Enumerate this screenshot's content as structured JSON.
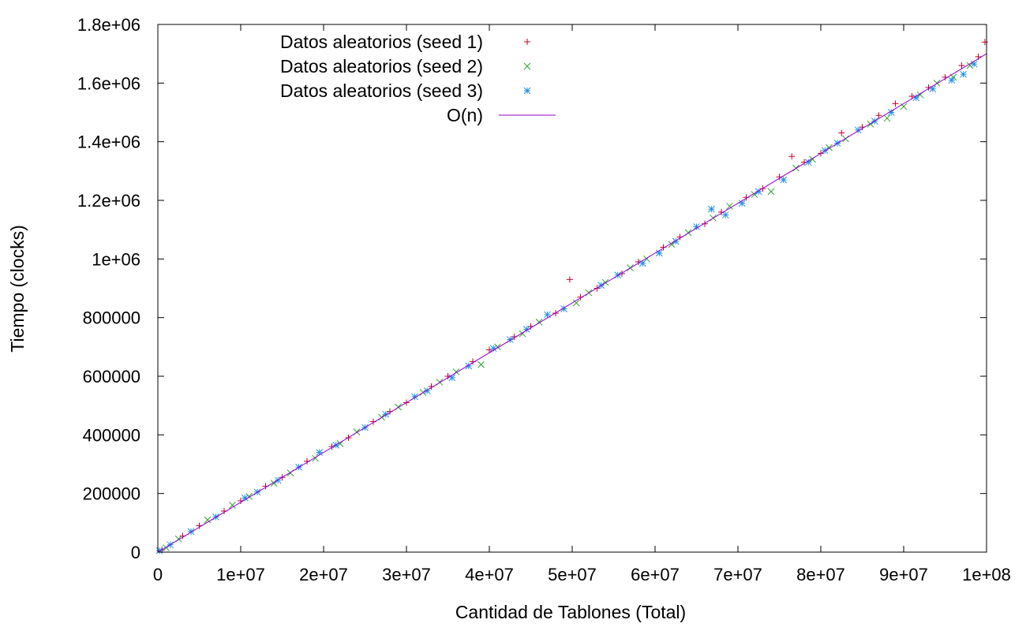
{
  "chart_data": {
    "type": "scatter",
    "title": "",
    "xlabel": "Cantidad de Tablones (Total)",
    "ylabel": "Tiempo (clocks)",
    "xlim": [
      0,
      100000000
    ],
    "ylim": [
      0,
      1800000
    ],
    "x_ticks": [
      {
        "value": 0,
        "label": "0"
      },
      {
        "value": 10000000,
        "label": "1e+07"
      },
      {
        "value": 20000000,
        "label": "2e+07"
      },
      {
        "value": 30000000,
        "label": "3e+07"
      },
      {
        "value": 40000000,
        "label": "4e+07"
      },
      {
        "value": 50000000,
        "label": "5e+07"
      },
      {
        "value": 60000000,
        "label": "6e+07"
      },
      {
        "value": 70000000,
        "label": "7e+07"
      },
      {
        "value": 80000000,
        "label": "8e+07"
      },
      {
        "value": 90000000,
        "label": "9e+07"
      },
      {
        "value": 100000000,
        "label": "1e+08"
      }
    ],
    "y_ticks": [
      {
        "value": 0,
        "label": "0"
      },
      {
        "value": 200000,
        "label": "200000"
      },
      {
        "value": 400000,
        "label": "400000"
      },
      {
        "value": 600000,
        "label": "600000"
      },
      {
        "value": 800000,
        "label": "800000"
      },
      {
        "value": 1000000,
        "label": "1e+06"
      },
      {
        "value": 1200000,
        "label": "1.2e+06"
      },
      {
        "value": 1400000,
        "label": "1.4e+06"
      },
      {
        "value": 1600000,
        "label": "1.6e+06"
      },
      {
        "value": 1800000,
        "label": "1.8e+06"
      }
    ],
    "grid": false,
    "legend_position": "top-left",
    "series": [
      {
        "name": "Datos aleatorios (seed 1)",
        "marker": "plus",
        "color": "#c8002a",
        "points": [
          [
            500000,
            8000
          ],
          [
            3000000,
            55000
          ],
          [
            5000000,
            90000
          ],
          [
            8000000,
            140000
          ],
          [
            10000000,
            175000
          ],
          [
            13000000,
            225000
          ],
          [
            15000000,
            255000
          ],
          [
            18000000,
            310000
          ],
          [
            21000000,
            360000
          ],
          [
            23000000,
            390000
          ],
          [
            26000000,
            445000
          ],
          [
            28000000,
            480000
          ],
          [
            30000000,
            510000
          ],
          [
            33000000,
            565000
          ],
          [
            35000000,
            600000
          ],
          [
            38000000,
            650000
          ],
          [
            40000000,
            690000
          ],
          [
            43000000,
            735000
          ],
          [
            45000000,
            770000
          ],
          [
            48000000,
            815000
          ],
          [
            49700000,
            930000
          ],
          [
            51000000,
            870000
          ],
          [
            53000000,
            900000
          ],
          [
            56000000,
            950000
          ],
          [
            58000000,
            990000
          ],
          [
            61000000,
            1040000
          ],
          [
            63000000,
            1075000
          ],
          [
            66000000,
            1120000
          ],
          [
            68000000,
            1160000
          ],
          [
            71000000,
            1210000
          ],
          [
            73000000,
            1240000
          ],
          [
            75000000,
            1280000
          ],
          [
            76500000,
            1350000
          ],
          [
            78000000,
            1330000
          ],
          [
            80000000,
            1360000
          ],
          [
            82500000,
            1430000
          ],
          [
            85000000,
            1450000
          ],
          [
            87000000,
            1490000
          ],
          [
            89000000,
            1530000
          ],
          [
            91000000,
            1555000
          ],
          [
            93000000,
            1585000
          ],
          [
            95000000,
            1620000
          ],
          [
            97000000,
            1660000
          ],
          [
            99000000,
            1690000
          ],
          [
            99800000,
            1740000
          ]
        ]
      },
      {
        "name": "Datos aleatorios (seed 2)",
        "marker": "cross",
        "color": "#2ca02c",
        "points": [
          [
            1000000,
            15000
          ],
          [
            2500000,
            45000
          ],
          [
            6000000,
            110000
          ],
          [
            9000000,
            160000
          ],
          [
            11000000,
            190000
          ],
          [
            14000000,
            235000
          ],
          [
            16000000,
            270000
          ],
          [
            19000000,
            320000
          ],
          [
            22000000,
            370000
          ],
          [
            24000000,
            410000
          ],
          [
            27000000,
            460000
          ],
          [
            29000000,
            495000
          ],
          [
            32000000,
            545000
          ],
          [
            34000000,
            580000
          ],
          [
            36000000,
            615000
          ],
          [
            39000000,
            640000
          ],
          [
            41000000,
            700000
          ],
          [
            44000000,
            745000
          ],
          [
            46000000,
            785000
          ],
          [
            50500000,
            850000
          ],
          [
            52000000,
            885000
          ],
          [
            54000000,
            920000
          ],
          [
            57000000,
            970000
          ],
          [
            59000000,
            1000000
          ],
          [
            62000000,
            1050000
          ],
          [
            64000000,
            1090000
          ],
          [
            67000000,
            1140000
          ],
          [
            69000000,
            1180000
          ],
          [
            72000000,
            1220000
          ],
          [
            74000000,
            1230000
          ],
          [
            77000000,
            1310000
          ],
          [
            79000000,
            1340000
          ],
          [
            81000000,
            1380000
          ],
          [
            83000000,
            1410000
          ],
          [
            86000000,
            1460000
          ],
          [
            88000000,
            1480000
          ],
          [
            90000000,
            1520000
          ],
          [
            92000000,
            1560000
          ],
          [
            94000000,
            1600000
          ],
          [
            96000000,
            1620000
          ],
          [
            98000000,
            1660000
          ]
        ]
      },
      {
        "name": "Datos aleatorios (seed 3)",
        "marker": "star",
        "color": "#1f8fe6",
        "points": [
          [
            200000,
            5000
          ],
          [
            1500000,
            25000
          ],
          [
            4000000,
            70000
          ],
          [
            7000000,
            120000
          ],
          [
            10500000,
            185000
          ],
          [
            12000000,
            205000
          ],
          [
            14500000,
            245000
          ],
          [
            17000000,
            290000
          ],
          [
            19500000,
            340000
          ],
          [
            21500000,
            365000
          ],
          [
            25000000,
            425000
          ],
          [
            27500000,
            470000
          ],
          [
            31000000,
            530000
          ],
          [
            32500000,
            550000
          ],
          [
            35500000,
            595000
          ],
          [
            37500000,
            635000
          ],
          [
            40500000,
            695000
          ],
          [
            42500000,
            725000
          ],
          [
            44500000,
            760000
          ],
          [
            47000000,
            810000
          ],
          [
            49000000,
            830000
          ],
          [
            53500000,
            910000
          ],
          [
            55500000,
            945000
          ],
          [
            58500000,
            985000
          ],
          [
            60500000,
            1020000
          ],
          [
            62500000,
            1060000
          ],
          [
            65000000,
            1110000
          ],
          [
            66800000,
            1170000
          ],
          [
            68500000,
            1150000
          ],
          [
            70500000,
            1190000
          ],
          [
            72500000,
            1230000
          ],
          [
            75500000,
            1270000
          ],
          [
            78500000,
            1330000
          ],
          [
            80500000,
            1370000
          ],
          [
            82000000,
            1395000
          ],
          [
            84500000,
            1440000
          ],
          [
            86500000,
            1470000
          ],
          [
            88500000,
            1500000
          ],
          [
            91500000,
            1550000
          ],
          [
            93500000,
            1580000
          ],
          [
            95800000,
            1610000
          ],
          [
            97200000,
            1630000
          ],
          [
            98500000,
            1665000
          ]
        ]
      },
      {
        "name": "O(n)",
        "marker": "line",
        "color": "#9400d3",
        "line": [
          [
            0,
            0
          ],
          [
            100000000,
            1700000
          ]
        ]
      }
    ]
  }
}
